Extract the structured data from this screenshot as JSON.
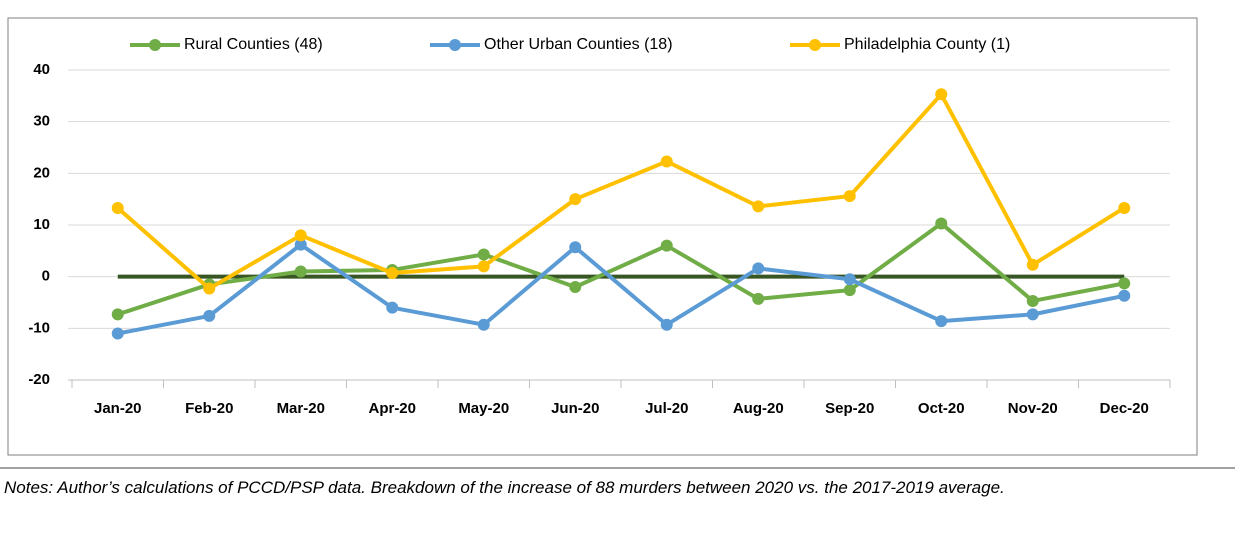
{
  "chart_data": {
    "type": "line",
    "categories": [
      "Jan-20",
      "Feb-20",
      "Mar-20",
      "Apr-20",
      "May-20",
      "Jun-20",
      "Jul-20",
      "Aug-20",
      "Sep-20",
      "Oct-20",
      "Nov-20",
      "Dec-20"
    ],
    "series": [
      {
        "name": "Rural Counties (48)",
        "color": "#70ad47",
        "values": [
          -7.3,
          -1.5,
          1,
          1.3,
          4.3,
          -2,
          6,
          -4.3,
          -2.6,
          10.3,
          -4.7,
          -1.3
        ]
      },
      {
        "name": "Other Urban Counties (18)",
        "color": "#5b9bd5",
        "values": [
          -11,
          -7.6,
          6.2,
          -6,
          -9.3,
          5.7,
          -9.3,
          1.6,
          -0.5,
          -8.6,
          -7.3,
          -3.7
        ]
      },
      {
        "name": "Philadelphia County (1)",
        "color": "#ffc000",
        "values": [
          13.3,
          -2.3,
          8,
          0.7,
          2,
          15,
          22.3,
          13.6,
          15.6,
          35.3,
          2.3,
          13.3
        ]
      }
    ],
    "reference_line": {
      "value": 0,
      "color": "#375623"
    },
    "ylim": [
      -20,
      40
    ],
    "yticks": [
      -20,
      -10,
      0,
      10,
      20,
      30,
      40
    ],
    "grid": true,
    "legend": "top",
    "notes": "Notes: Author’s calculations of PCCD/PSP data. Breakdown of the increase of 88 murders between 2020 vs. the 2017-2019 average."
  }
}
